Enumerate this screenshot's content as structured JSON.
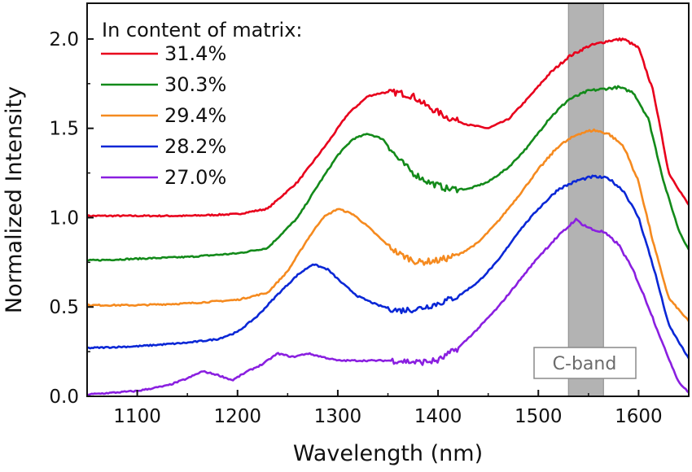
{
  "chart_data": {
    "type": "line",
    "xlabel": "Wavelength (nm)",
    "ylabel": "Normalized Intensity",
    "xlim": [
      1050,
      1650
    ],
    "ylim": [
      0.0,
      2.2
    ],
    "xticks": [
      1100,
      1200,
      1300,
      1400,
      1500,
      1600
    ],
    "yticks": [
      0.0,
      0.5,
      1.0,
      1.5,
      2.0
    ],
    "xtick_labels": [
      "1100",
      "1200",
      "1300",
      "1400",
      "1500",
      "1600"
    ],
    "ytick_labels": [
      "0.0",
      "0.5",
      "1.0",
      "1.5",
      "2.0"
    ],
    "grid": false,
    "legend": {
      "title": "In content of matrix:",
      "position": "top-left",
      "entries": [
        "31.4%",
        "30.3%",
        "29.4%",
        "28.2%",
        "27.0%"
      ]
    },
    "band": {
      "label": "C-band",
      "x_range": [
        1530,
        1565
      ],
      "color": "#b3b3b3"
    },
    "series": [
      {
        "name": "31.4%",
        "color": "#e8001c",
        "x": [
          1050,
          1100,
          1150,
          1200,
          1230,
          1260,
          1290,
          1310,
          1330,
          1345,
          1360,
          1375,
          1390,
          1410,
          1430,
          1450,
          1470,
          1490,
          1510,
          1530,
          1550,
          1570,
          1585,
          1600,
          1615,
          1630,
          1650
        ],
        "y": [
          1.01,
          1.01,
          1.01,
          1.02,
          1.05,
          1.2,
          1.42,
          1.58,
          1.68,
          1.7,
          1.7,
          1.68,
          1.62,
          1.56,
          1.52,
          1.5,
          1.55,
          1.67,
          1.8,
          1.9,
          1.96,
          1.99,
          2.0,
          1.95,
          1.7,
          1.25,
          1.07
        ]
      },
      {
        "name": "30.3%",
        "color": "#138a1a",
        "x": [
          1050,
          1100,
          1150,
          1200,
          1230,
          1260,
          1280,
          1300,
          1315,
          1330,
          1345,
          1360,
          1375,
          1390,
          1410,
          1430,
          1450,
          1470,
          1490,
          1510,
          1530,
          1550,
          1565,
          1580,
          1595,
          1610,
          1625,
          1640,
          1650
        ],
        "y": [
          0.76,
          0.77,
          0.78,
          0.8,
          0.83,
          1.0,
          1.18,
          1.35,
          1.44,
          1.47,
          1.44,
          1.33,
          1.25,
          1.2,
          1.16,
          1.16,
          1.2,
          1.28,
          1.4,
          1.55,
          1.66,
          1.71,
          1.72,
          1.73,
          1.7,
          1.55,
          1.2,
          0.93,
          0.82
        ]
      },
      {
        "name": "29.4%",
        "color": "#f58a1f",
        "x": [
          1050,
          1100,
          1150,
          1200,
          1230,
          1250,
          1270,
          1285,
          1300,
          1315,
          1330,
          1345,
          1360,
          1380,
          1400,
          1420,
          1440,
          1460,
          1480,
          1500,
          1520,
          1540,
          1555,
          1570,
          1585,
          1600,
          1615,
          1630,
          1650
        ],
        "y": [
          0.51,
          0.51,
          0.52,
          0.54,
          0.58,
          0.7,
          0.88,
          1.0,
          1.05,
          1.02,
          0.95,
          0.87,
          0.8,
          0.75,
          0.76,
          0.79,
          0.86,
          0.98,
          1.12,
          1.27,
          1.4,
          1.47,
          1.49,
          1.47,
          1.4,
          1.2,
          0.85,
          0.55,
          0.42
        ]
      },
      {
        "name": "28.2%",
        "color": "#0a27d6",
        "x": [
          1050,
          1100,
          1150,
          1180,
          1200,
          1220,
          1240,
          1260,
          1275,
          1290,
          1305,
          1320,
          1340,
          1360,
          1380,
          1400,
          1420,
          1440,
          1460,
          1480,
          1500,
          1520,
          1540,
          1555,
          1570,
          1585,
          1600,
          1615,
          1630,
          1650
        ],
        "y": [
          0.27,
          0.28,
          0.3,
          0.32,
          0.36,
          0.45,
          0.57,
          0.68,
          0.74,
          0.71,
          0.63,
          0.56,
          0.51,
          0.48,
          0.49,
          0.52,
          0.56,
          0.64,
          0.76,
          0.92,
          1.05,
          1.16,
          1.21,
          1.23,
          1.22,
          1.15,
          1.0,
          0.72,
          0.4,
          0.21
        ]
      },
      {
        "name": "27.0%",
        "color": "#8a1fe0",
        "x": [
          1050,
          1100,
          1130,
          1150,
          1165,
          1180,
          1195,
          1210,
          1225,
          1240,
          1255,
          1270,
          1285,
          1300,
          1320,
          1340,
          1360,
          1380,
          1400,
          1420,
          1440,
          1460,
          1480,
          1500,
          1515,
          1530,
          1537,
          1545,
          1555,
          1565,
          1580,
          1595,
          1610,
          1625,
          1640,
          1650
        ],
        "y": [
          0.01,
          0.03,
          0.06,
          0.1,
          0.14,
          0.12,
          0.09,
          0.14,
          0.18,
          0.24,
          0.22,
          0.24,
          0.22,
          0.2,
          0.2,
          0.2,
          0.2,
          0.19,
          0.2,
          0.27,
          0.38,
          0.5,
          0.64,
          0.78,
          0.87,
          0.95,
          0.99,
          0.96,
          0.93,
          0.92,
          0.85,
          0.7,
          0.5,
          0.28,
          0.08,
          0.02
        ]
      }
    ]
  }
}
